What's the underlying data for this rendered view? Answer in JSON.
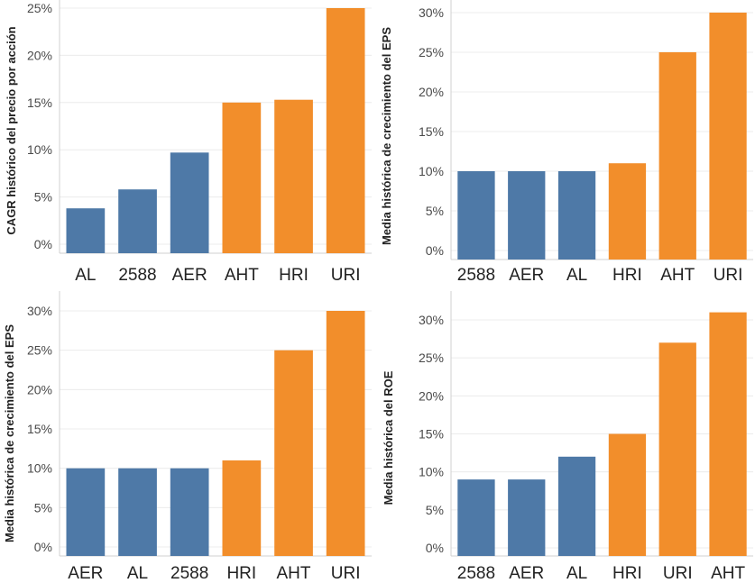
{
  "colors": {
    "blue": "#4e79a7",
    "orange": "#f28e2b"
  },
  "chart_data": [
    {
      "type": "bar",
      "ylabel": "CAGR histórico del precio por acción",
      "categories": [
        "AL",
        "2588",
        "AER",
        "AHT",
        "HRI",
        "URI"
      ],
      "values": [
        3.8,
        5.8,
        9.7,
        15.0,
        15.3,
        25.0
      ],
      "bar_colors": [
        "blue",
        "blue",
        "blue",
        "orange",
        "orange",
        "orange"
      ],
      "yticks": [
        "0%",
        "5%",
        "10%",
        "15%",
        "20%",
        "25%"
      ],
      "ylim": [
        0,
        25
      ]
    },
    {
      "type": "bar",
      "ylabel": "Media histórica de crecimiento del EPS",
      "categories": [
        "2588",
        "AER",
        "AL",
        "HRI",
        "AHT",
        "URI"
      ],
      "values": [
        10,
        10,
        10,
        11,
        25,
        30
      ],
      "bar_colors": [
        "blue",
        "blue",
        "blue",
        "orange",
        "orange",
        "orange"
      ],
      "yticks": [
        "0%",
        "5%",
        "10%",
        "15%",
        "20%",
        "25%",
        "30%"
      ],
      "ylim": [
        0,
        30
      ]
    },
    {
      "type": "bar",
      "ylabel": "Media histórica de crecimiento del EPS",
      "categories": [
        "AER",
        "AL",
        "2588",
        "HRI",
        "AHT",
        "URI"
      ],
      "values": [
        10,
        10,
        10,
        11,
        25,
        30
      ],
      "bar_colors": [
        "blue",
        "blue",
        "blue",
        "orange",
        "orange",
        "orange"
      ],
      "yticks": [
        "0%",
        "5%",
        "10%",
        "15%",
        "20%",
        "25%",
        "30%"
      ],
      "ylim": [
        0,
        30
      ]
    },
    {
      "type": "bar",
      "ylabel": "Media histórica del ROE",
      "categories": [
        "2588",
        "AER",
        "AL",
        "HRI",
        "URI",
        "AHT"
      ],
      "values": [
        9,
        9,
        12,
        15,
        27,
        31
      ],
      "bar_colors": [
        "blue",
        "blue",
        "blue",
        "orange",
        "orange",
        "orange"
      ],
      "yticks": [
        "0%",
        "5%",
        "10%",
        "15%",
        "20%",
        "25%",
        "30%"
      ],
      "ylim": [
        0,
        30
      ]
    }
  ]
}
